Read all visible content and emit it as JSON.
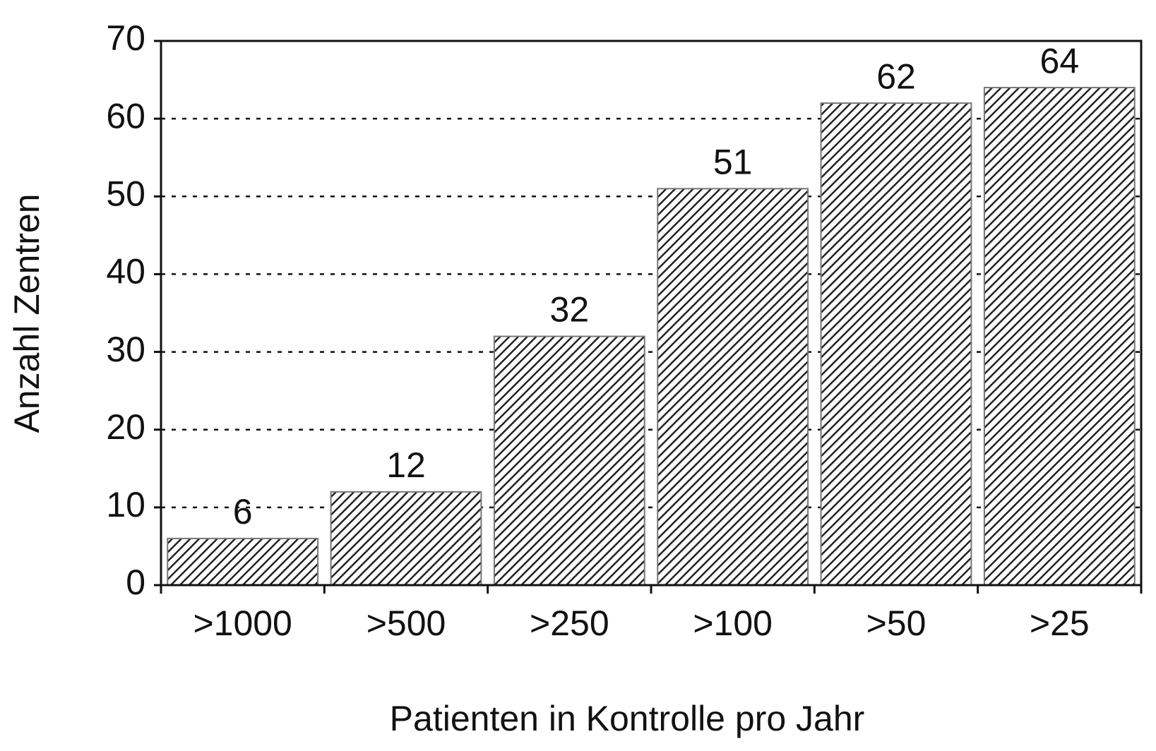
{
  "chart_data": {
    "type": "bar",
    "x_label": "Patienten in Kontrolle pro Jahr",
    "y_label": "Anzahl Zentren",
    "categories": [
      ">1000",
      ">500",
      ">250",
      ">100",
      ">50",
      ">25"
    ],
    "values": [
      6,
      12,
      32,
      51,
      62,
      64
    ],
    "color": "#222222",
    "ylim": [
      0,
      70
    ],
    "yticks": [
      0,
      10,
      20,
      30,
      40,
      50,
      60,
      70
    ],
    "grid": true
  }
}
